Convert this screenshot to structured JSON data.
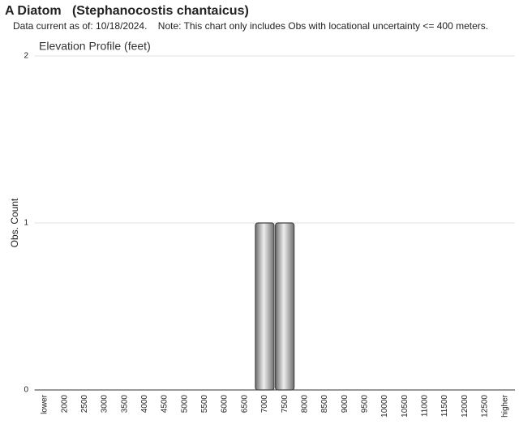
{
  "chart_data": {
    "type": "bar",
    "title": "A Diatom   (Stephanocostis chantaicus)",
    "subtitle": "Data current as of: 10/18/2024.    Note: This chart only includes Obs with locational uncertainty <= 400 meters.",
    "chart_title": "Elevation Profile (feet)",
    "y_label": "Obs. Count",
    "categories": [
      "lower",
      "2000",
      "2500",
      "3000",
      "3500",
      "4000",
      "4500",
      "5000",
      "5500",
      "6000",
      "6500",
      "7000",
      "7500",
      "8000",
      "8500",
      "9000",
      "9500",
      "10000",
      "10500",
      "11000",
      "11500",
      "12000",
      "12500",
      "higher"
    ],
    "values": [
      0,
      0,
      0,
      0,
      0,
      0,
      0,
      0,
      0,
      0,
      0,
      1,
      1,
      0,
      0,
      0,
      0,
      0,
      0,
      0,
      0,
      0,
      0,
      0
    ],
    "color": "#9a9a9a",
    "ylim": [
      0,
      2
    ],
    "yticks": [
      0,
      1,
      2
    ],
    "grid": true
  }
}
